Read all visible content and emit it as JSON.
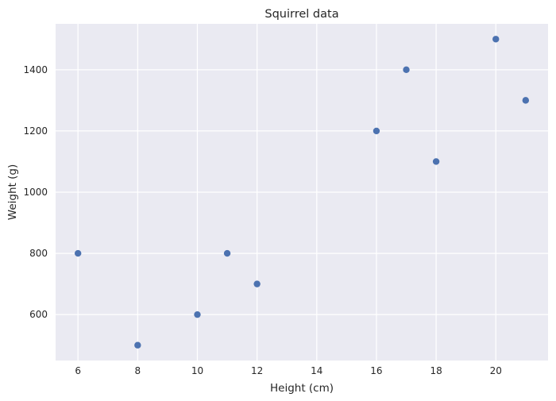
{
  "chart_data": {
    "type": "scatter",
    "title": "Squirrel data",
    "xlabel": "Height (cm)",
    "ylabel": "Weight (g)",
    "xlim": [
      5.25,
      21.75
    ],
    "ylim": [
      450,
      1550
    ],
    "xticks": [
      6,
      8,
      10,
      12,
      14,
      16,
      18,
      20
    ],
    "yticks": [
      600,
      800,
      1000,
      1200,
      1400
    ],
    "grid": true,
    "series": [
      {
        "color": "#4c72b0",
        "points": [
          {
            "x": 6,
            "y": 800
          },
          {
            "x": 8,
            "y": 500
          },
          {
            "x": 10,
            "y": 600
          },
          {
            "x": 11,
            "y": 800
          },
          {
            "x": 12,
            "y": 700
          },
          {
            "x": 16,
            "y": 1200
          },
          {
            "x": 17,
            "y": 1400
          },
          {
            "x": 18,
            "y": 1100
          },
          {
            "x": 20,
            "y": 1500
          },
          {
            "x": 21,
            "y": 1300
          }
        ]
      }
    ],
    "background_color": "#eaeaf2",
    "grid_color": "#ffffff"
  }
}
